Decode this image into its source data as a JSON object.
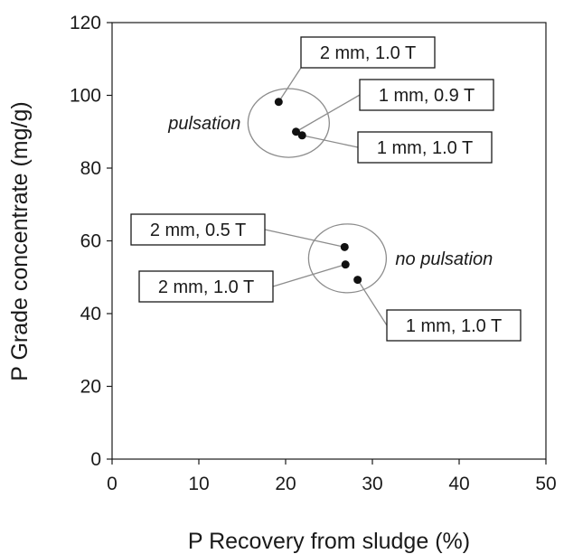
{
  "chart_data": {
    "type": "scatter",
    "xlabel": "P Recovery from sludge (%)",
    "ylabel": "P Grade concentrate (mg/g)",
    "xlim": [
      0,
      50
    ],
    "ylim": [
      0,
      120
    ],
    "x_ticks": [
      "0",
      "10",
      "20",
      "30",
      "40",
      "50"
    ],
    "y_ticks": [
      "0",
      "20",
      "40",
      "60",
      "80",
      "100",
      "120"
    ],
    "grid": false,
    "legend": "none",
    "point_color": "#111111",
    "ellipse_color": "#8c8c8c",
    "points": [
      {
        "x": 19.2,
        "y": 98.2,
        "label": "2 mm, 1.0 T"
      },
      {
        "x": 21.2,
        "y": 90.0,
        "label": "1 mm, 0.9 T"
      },
      {
        "x": 21.9,
        "y": 89.0,
        "label": "1 mm, 1.0 T"
      },
      {
        "x": 26.8,
        "y": 58.3,
        "label": "2 mm, 0.5 T"
      },
      {
        "x": 26.9,
        "y": 53.5,
        "label": "2 mm, 1.0 T"
      },
      {
        "x": 28.3,
        "y": 49.3,
        "label": "1 mm, 1.0 T"
      }
    ],
    "groups": [
      {
        "label": "pulsation",
        "points": [
          0,
          1,
          2
        ]
      },
      {
        "label": "no pulsation",
        "points": [
          3,
          4,
          5
        ]
      }
    ]
  }
}
